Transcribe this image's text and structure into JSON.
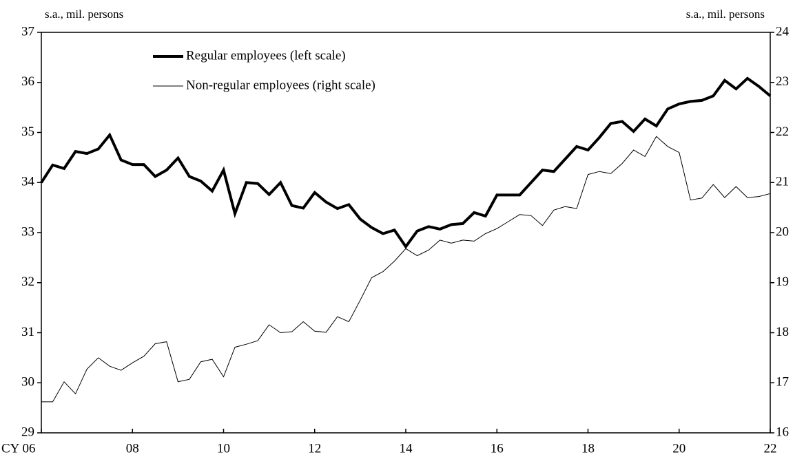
{
  "chart_data": {
    "type": "line",
    "y_label": "s.a., mil.  persons",
    "y2_label": "s.a., mil.  persons",
    "categories": [
      "CY 06",
      null,
      null,
      null,
      null,
      null,
      null,
      null,
      "08",
      null,
      null,
      null,
      null,
      null,
      null,
      null,
      "10",
      null,
      null,
      null,
      null,
      null,
      null,
      null,
      "12",
      null,
      null,
      null,
      null,
      null,
      null,
      null,
      "14",
      null,
      null,
      null,
      null,
      null,
      null,
      null,
      "16",
      null,
      null,
      null,
      null,
      null,
      null,
      null,
      "18",
      null,
      null,
      null,
      null,
      null,
      null,
      null,
      "20",
      null,
      null,
      null,
      null,
      null,
      null,
      null,
      "22"
    ],
    "series": [
      {
        "name": "Regular employees (left scale)",
        "color": "#000000",
        "axis": "y",
        "values": [
          34.0,
          34.35,
          34.28,
          34.62,
          34.58,
          34.67,
          34.95,
          34.45,
          34.36,
          34.36,
          34.12,
          34.25,
          34.49,
          34.12,
          34.03,
          33.83,
          34.25,
          33.38,
          34.0,
          33.98,
          33.76,
          34.0,
          33.54,
          33.49,
          33.8,
          33.61,
          33.48,
          33.56,
          33.27,
          33.1,
          32.98,
          33.05,
          32.72,
          33.03,
          33.12,
          33.07,
          33.16,
          33.18,
          33.4,
          33.33,
          33.75,
          33.75,
          33.75,
          34.0,
          34.25,
          34.22,
          34.47,
          34.72,
          34.65,
          34.9,
          35.18,
          35.22,
          35.02,
          35.27,
          35.13,
          35.47,
          35.57,
          35.62,
          35.64,
          35.73,
          36.04,
          35.87,
          36.08,
          35.92,
          35.73
        ]
      },
      {
        "name": "Non-regular employees (right scale)",
        "color": "#000000",
        "axis": "y2",
        "values": [
          16.62,
          16.62,
          17.02,
          16.78,
          17.27,
          17.5,
          17.33,
          17.25,
          17.4,
          17.53,
          17.78,
          17.82,
          17.02,
          17.07,
          17.42,
          17.47,
          17.12,
          17.71,
          17.77,
          17.84,
          18.16,
          18.0,
          18.02,
          18.22,
          18.03,
          18.01,
          18.32,
          18.22,
          18.65,
          19.1,
          19.22,
          19.43,
          19.68,
          19.54,
          19.65,
          19.85,
          19.79,
          19.85,
          19.83,
          19.98,
          20.08,
          20.22,
          20.36,
          20.34,
          20.14,
          20.45,
          20.52,
          20.48,
          21.16,
          21.22,
          21.18,
          21.38,
          21.65,
          21.52,
          21.92,
          21.72,
          21.6,
          20.65,
          20.69,
          20.96,
          20.7,
          20.92,
          20.7,
          20.72,
          20.78
        ]
      }
    ],
    "ylim": [
      29,
      37
    ],
    "yticks": [
      29,
      30,
      31,
      32,
      33,
      34,
      35,
      36,
      37
    ],
    "y2lim": [
      16,
      24
    ],
    "y2ticks": [
      16,
      17,
      18,
      19,
      20,
      21,
      22,
      23,
      24
    ],
    "legend": "upper left"
  }
}
